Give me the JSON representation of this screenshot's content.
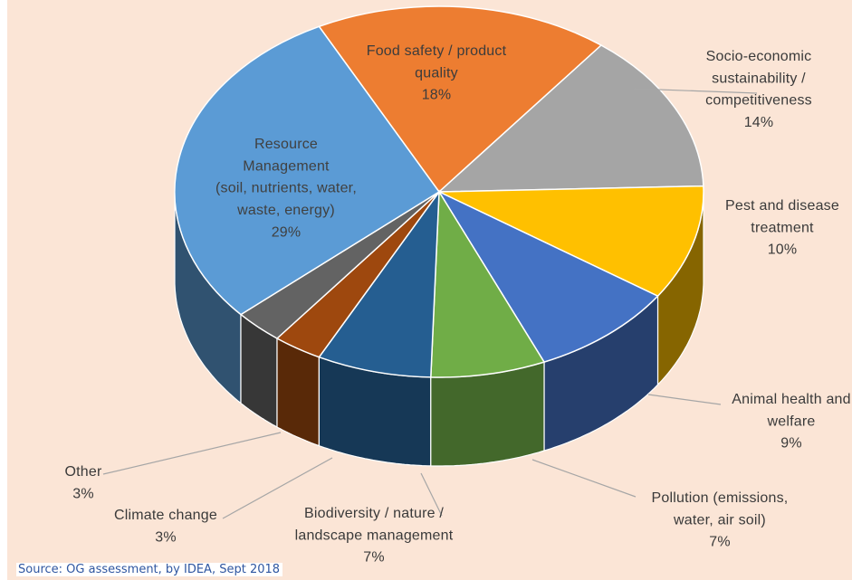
{
  "source_note": "Source: OG assessment, by IDEA, Sept 2018",
  "chart_data": {
    "type": "pie",
    "style": "3d",
    "title": "",
    "background_color": "#fbe5d6",
    "slices": [
      {
        "label": [
          "Food safety / product",
          "quality"
        ],
        "percent_label": "18%",
        "value": 18,
        "color": "#ed7d31"
      },
      {
        "label": [
          "Socio-economic",
          "sustainability /",
          "competitiveness"
        ],
        "percent_label": "14%",
        "value": 14,
        "color": "#a5a5a5"
      },
      {
        "label": [
          "Pest and disease",
          "treatment"
        ],
        "percent_label": "10%",
        "value": 10,
        "color": "#ffc000"
      },
      {
        "label": [
          "Animal health and",
          "welfare"
        ],
        "percent_label": "9%",
        "value": 9,
        "color": "#4472c4"
      },
      {
        "label": [
          "Pollution (emissions,",
          "water, air soil)"
        ],
        "percent_label": "7%",
        "value": 7,
        "color": "#70ad47"
      },
      {
        "label": [
          "Biodiversity / nature /",
          "landscape management"
        ],
        "percent_label": "7%",
        "value": 7,
        "color": "#255e91"
      },
      {
        "label": [
          "Climate change"
        ],
        "percent_label": "3%",
        "value": 3,
        "color": "#9e480e"
      },
      {
        "label": [
          "Other"
        ],
        "percent_label": "3%",
        "value": 3,
        "color": "#636363"
      },
      {
        "label": [
          "Resource",
          "Management",
          "(soil, nutrients, water,",
          "waste, energy)"
        ],
        "percent_label": "29%",
        "value": 29,
        "color": "#5b9bd5"
      }
    ]
  }
}
